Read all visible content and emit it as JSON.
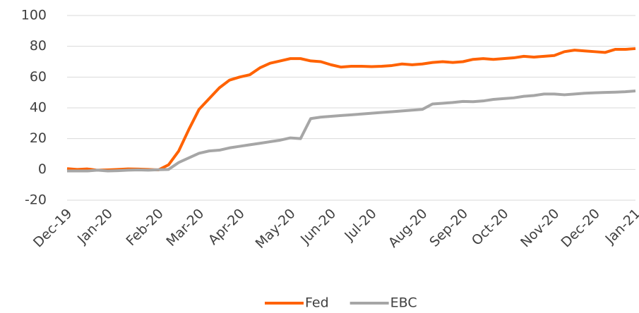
{
  "chart_data": {
    "type": "line",
    "categories": [
      "Dec-19",
      null,
      null,
      null,
      "Jan-20",
      null,
      null,
      null,
      null,
      "Feb-20",
      null,
      null,
      null,
      "Mar-20",
      null,
      null,
      null,
      "Apr-20",
      null,
      null,
      null,
      null,
      "May-20",
      null,
      null,
      null,
      "Jun-20",
      null,
      null,
      null,
      "Jul-20",
      null,
      null,
      null,
      null,
      "Aug-20",
      null,
      null,
      null,
      "Sep-20",
      null,
      null,
      null,
      "Oct-20",
      null,
      null,
      null,
      null,
      "Nov-20",
      null,
      null,
      null,
      "Dec-20",
      null,
      null,
      null,
      "Jan-21"
    ],
    "series": [
      {
        "name": "Fed",
        "color": "#ff6200",
        "values": [
          0.5,
          0,
          0.3,
          -0.5,
          -0.3,
          0,
          0.3,
          0.2,
          0,
          -0.3,
          3,
          12,
          26,
          39,
          46,
          53,
          58,
          60,
          61.5,
          66,
          69,
          70.5,
          72,
          72,
          70.5,
          70,
          68,
          66.5,
          67,
          67,
          66.8,
          67,
          67.5,
          68.5,
          68,
          68.5,
          69.5,
          70,
          69.5,
          70,
          71.5,
          72,
          71.5,
          72,
          72.5,
          73.5,
          73,
          73.5,
          74,
          76.5,
          77.5,
          77,
          76.5,
          76,
          78,
          78,
          78.5
        ]
      },
      {
        "name": "EBC",
        "color": "#a6a6a6",
        "values": [
          -1,
          -1,
          -1,
          -0.5,
          -1,
          -0.8,
          -0.5,
          -0.3,
          -0.5,
          -0.2,
          0,
          4.5,
          7.5,
          10.5,
          12,
          12.5,
          14,
          15,
          16,
          17,
          18,
          19,
          20.5,
          20,
          33,
          34,
          34.5,
          35,
          35.5,
          36,
          36.5,
          37,
          37.5,
          38,
          38.5,
          39,
          42.5,
          43,
          43.5,
          44.2,
          44,
          44.5,
          45.5,
          46,
          46.5,
          47.5,
          48,
          49,
          49,
          48.5,
          49,
          49.5,
          49.8,
          50,
          50.2,
          50.5,
          51
        ]
      }
    ],
    "ylim": [
      -20,
      100
    ],
    "yticks": [
      -20,
      0,
      20,
      40,
      60,
      80,
      100
    ],
    "grid": true,
    "legend": "bottom"
  }
}
